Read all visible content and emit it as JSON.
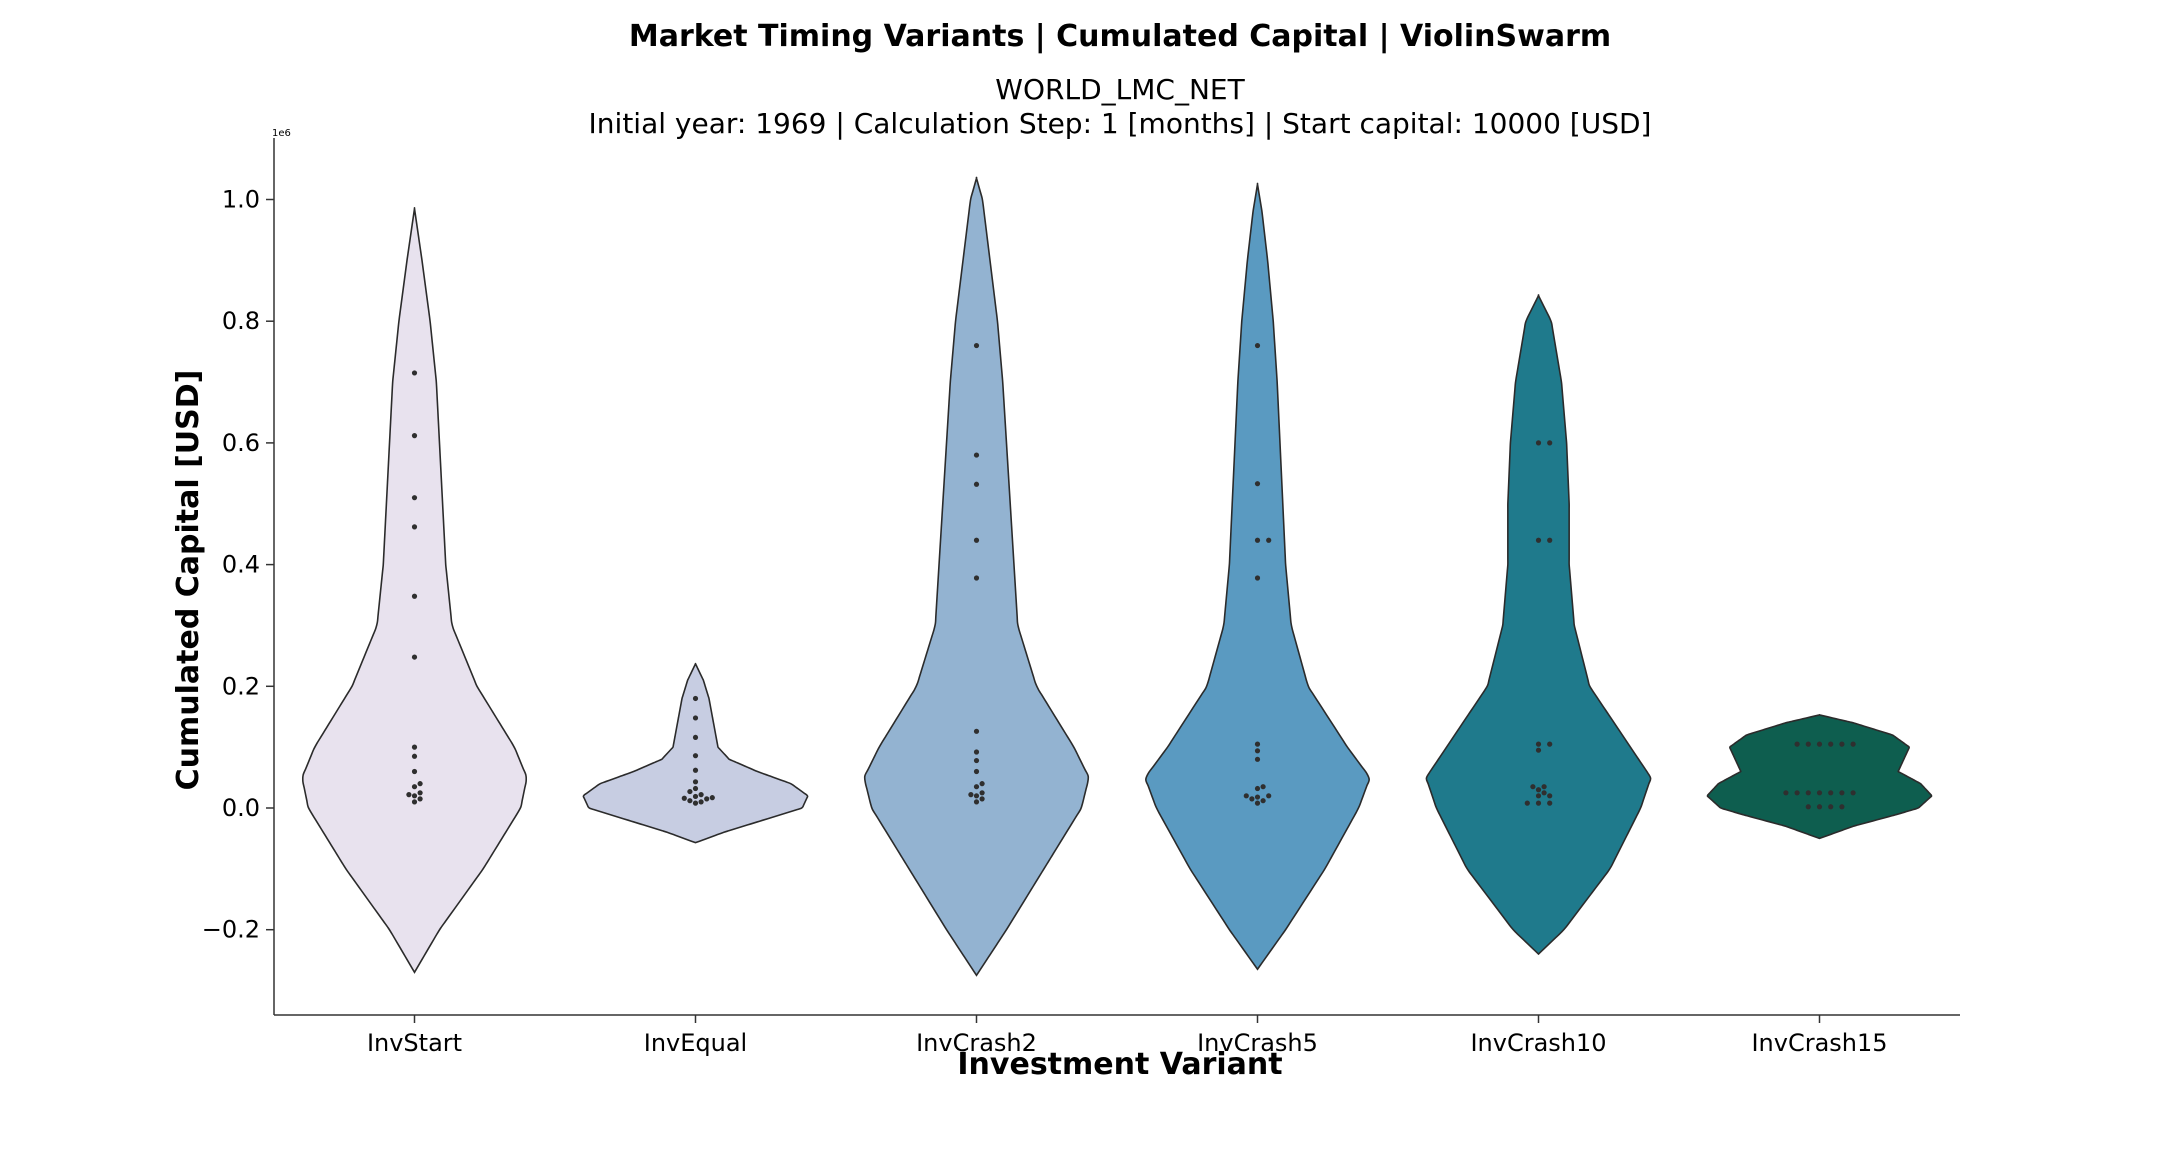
{
  "chart_data": {
    "type": "violin",
    "title": "Market Timing Variants | Cumulated Capital | ViolinSwarm",
    "subtitle_line1": "WORLD_LMC_NET",
    "subtitle_line2": "Initial year: 1969 | Calculation Step: 1 [months] | Start capital: 10000 [USD]",
    "xlabel": "Investment Variant",
    "ylabel": "Cumulated Capital [USD]",
    "y_offset_label": "1e6",
    "y_scale": 1000000,
    "ylim": [
      -0.34,
      1.1
    ],
    "yticks": [
      -0.2,
      0.0,
      0.2,
      0.4,
      0.6,
      0.8,
      1.0
    ],
    "ytick_labels": [
      "−0.2",
      "0.0",
      "0.2",
      "0.4",
      "0.6",
      "0.8",
      "1.0"
    ],
    "categories": [
      "InvStart",
      "InvEqual",
      "InvCrash2",
      "InvCrash5",
      "InvCrash10",
      "InvCrash15"
    ],
    "colors": [
      "#e8e2ee",
      "#c7cde2",
      "#93b3d1",
      "#5a9ac1",
      "#1f7a8c",
      "#0e5e4f"
    ],
    "violins": [
      {
        "name": "InvStart",
        "profile": [
          [
            -0.27,
            0.0
          ],
          [
            -0.2,
            0.04
          ],
          [
            -0.1,
            0.11
          ],
          [
            0.0,
            0.17
          ],
          [
            0.05,
            0.18
          ],
          [
            0.1,
            0.16
          ],
          [
            0.2,
            0.1
          ],
          [
            0.3,
            0.06
          ],
          [
            0.4,
            0.05
          ],
          [
            0.5,
            0.045
          ],
          [
            0.6,
            0.04
          ],
          [
            0.7,
            0.035
          ],
          [
            0.8,
            0.025
          ],
          [
            0.9,
            0.012
          ],
          [
            0.985,
            0.0
          ]
        ],
        "points": [
          0.715,
          0.612,
          0.51,
          0.462,
          0.348,
          0.248,
          0.1,
          0.085,
          0.06,
          0.04,
          0.035,
          0.025,
          0.022,
          0.02,
          0.015,
          0.01
        ]
      },
      {
        "name": "InvEqual",
        "profile": [
          [
            -0.057,
            0.0
          ],
          [
            -0.04,
            0.25
          ],
          [
            -0.02,
            0.6
          ],
          [
            0.0,
            0.95
          ],
          [
            0.02,
            1.0
          ],
          [
            0.04,
            0.85
          ],
          [
            0.06,
            0.55
          ],
          [
            0.08,
            0.3
          ],
          [
            0.1,
            0.2
          ],
          [
            0.14,
            0.16
          ],
          [
            0.18,
            0.12
          ],
          [
            0.21,
            0.07
          ],
          [
            0.237,
            0.0
          ]
        ],
        "points": [
          0.18,
          0.148,
          0.116,
          0.086,
          0.062,
          0.043,
          0.032,
          0.027,
          0.022,
          0.019,
          0.017,
          0.016,
          0.015,
          0.012,
          0.01,
          0.008
        ]
      },
      {
        "name": "InvCrash2",
        "profile": [
          [
            -0.275,
            0.0
          ],
          [
            -0.2,
            0.04
          ],
          [
            -0.1,
            0.09
          ],
          [
            0.0,
            0.14
          ],
          [
            0.05,
            0.15
          ],
          [
            0.1,
            0.13
          ],
          [
            0.2,
            0.08
          ],
          [
            0.3,
            0.055
          ],
          [
            0.4,
            0.05
          ],
          [
            0.5,
            0.045
          ],
          [
            0.6,
            0.04
          ],
          [
            0.7,
            0.035
          ],
          [
            0.8,
            0.028
          ],
          [
            0.9,
            0.018
          ],
          [
            1.0,
            0.008
          ],
          [
            1.035,
            0.0
          ]
        ],
        "points": [
          0.76,
          0.58,
          0.532,
          0.44,
          0.378,
          0.126,
          0.092,
          0.078,
          0.06,
          0.04,
          0.035,
          0.025,
          0.022,
          0.02,
          0.015,
          0.01
        ]
      },
      {
        "name": "InvCrash5",
        "profile": [
          [
            -0.265,
            0.0
          ],
          [
            -0.2,
            0.05
          ],
          [
            -0.1,
            0.12
          ],
          [
            0.0,
            0.18
          ],
          [
            0.05,
            0.2
          ],
          [
            0.1,
            0.16
          ],
          [
            0.2,
            0.09
          ],
          [
            0.3,
            0.06
          ],
          [
            0.4,
            0.05
          ],
          [
            0.5,
            0.045
          ],
          [
            0.6,
            0.04
          ],
          [
            0.7,
            0.035
          ],
          [
            0.8,
            0.028
          ],
          [
            0.9,
            0.018
          ],
          [
            0.98,
            0.008
          ],
          [
            1.025,
            0.0
          ]
        ],
        "points": [
          0.76,
          0.533,
          0.44,
          0.44,
          0.378,
          0.105,
          0.094,
          0.08,
          0.035,
          0.032,
          0.02,
          0.02,
          0.018,
          0.015,
          0.012,
          0.008
        ]
      },
      {
        "name": "InvCrash10",
        "profile": [
          [
            -0.24,
            0.0
          ],
          [
            -0.2,
            0.05
          ],
          [
            -0.1,
            0.14
          ],
          [
            0.0,
            0.2
          ],
          [
            0.05,
            0.22
          ],
          [
            0.1,
            0.18
          ],
          [
            0.2,
            0.1
          ],
          [
            0.3,
            0.07
          ],
          [
            0.4,
            0.06
          ],
          [
            0.5,
            0.06
          ],
          [
            0.6,
            0.055
          ],
          [
            0.7,
            0.045
          ],
          [
            0.8,
            0.025
          ],
          [
            0.842,
            0.0
          ]
        ],
        "points": [
          0.6,
          0.6,
          0.44,
          0.44,
          0.105,
          0.105,
          0.095,
          0.035,
          0.035,
          0.03,
          0.025,
          0.02,
          0.02,
          0.008,
          0.008,
          0.008
        ]
      },
      {
        "name": "InvCrash15",
        "profile": [
          [
            -0.05,
            0.0
          ],
          [
            -0.03,
            0.3
          ],
          [
            -0.01,
            0.7
          ],
          [
            0.0,
            0.88
          ],
          [
            0.02,
            1.0
          ],
          [
            0.04,
            0.9
          ],
          [
            0.06,
            0.7
          ],
          [
            0.08,
            0.75
          ],
          [
            0.1,
            0.8
          ],
          [
            0.12,
            0.65
          ],
          [
            0.14,
            0.3
          ],
          [
            0.153,
            0.0
          ]
        ],
        "points": [
          0.105,
          0.105,
          0.105,
          0.105,
          0.105,
          0.105,
          0.025,
          0.025,
          0.025,
          0.025,
          0.025,
          0.025,
          0.025,
          0.002,
          0.002,
          0.002,
          0.002
        ]
      }
    ]
  }
}
